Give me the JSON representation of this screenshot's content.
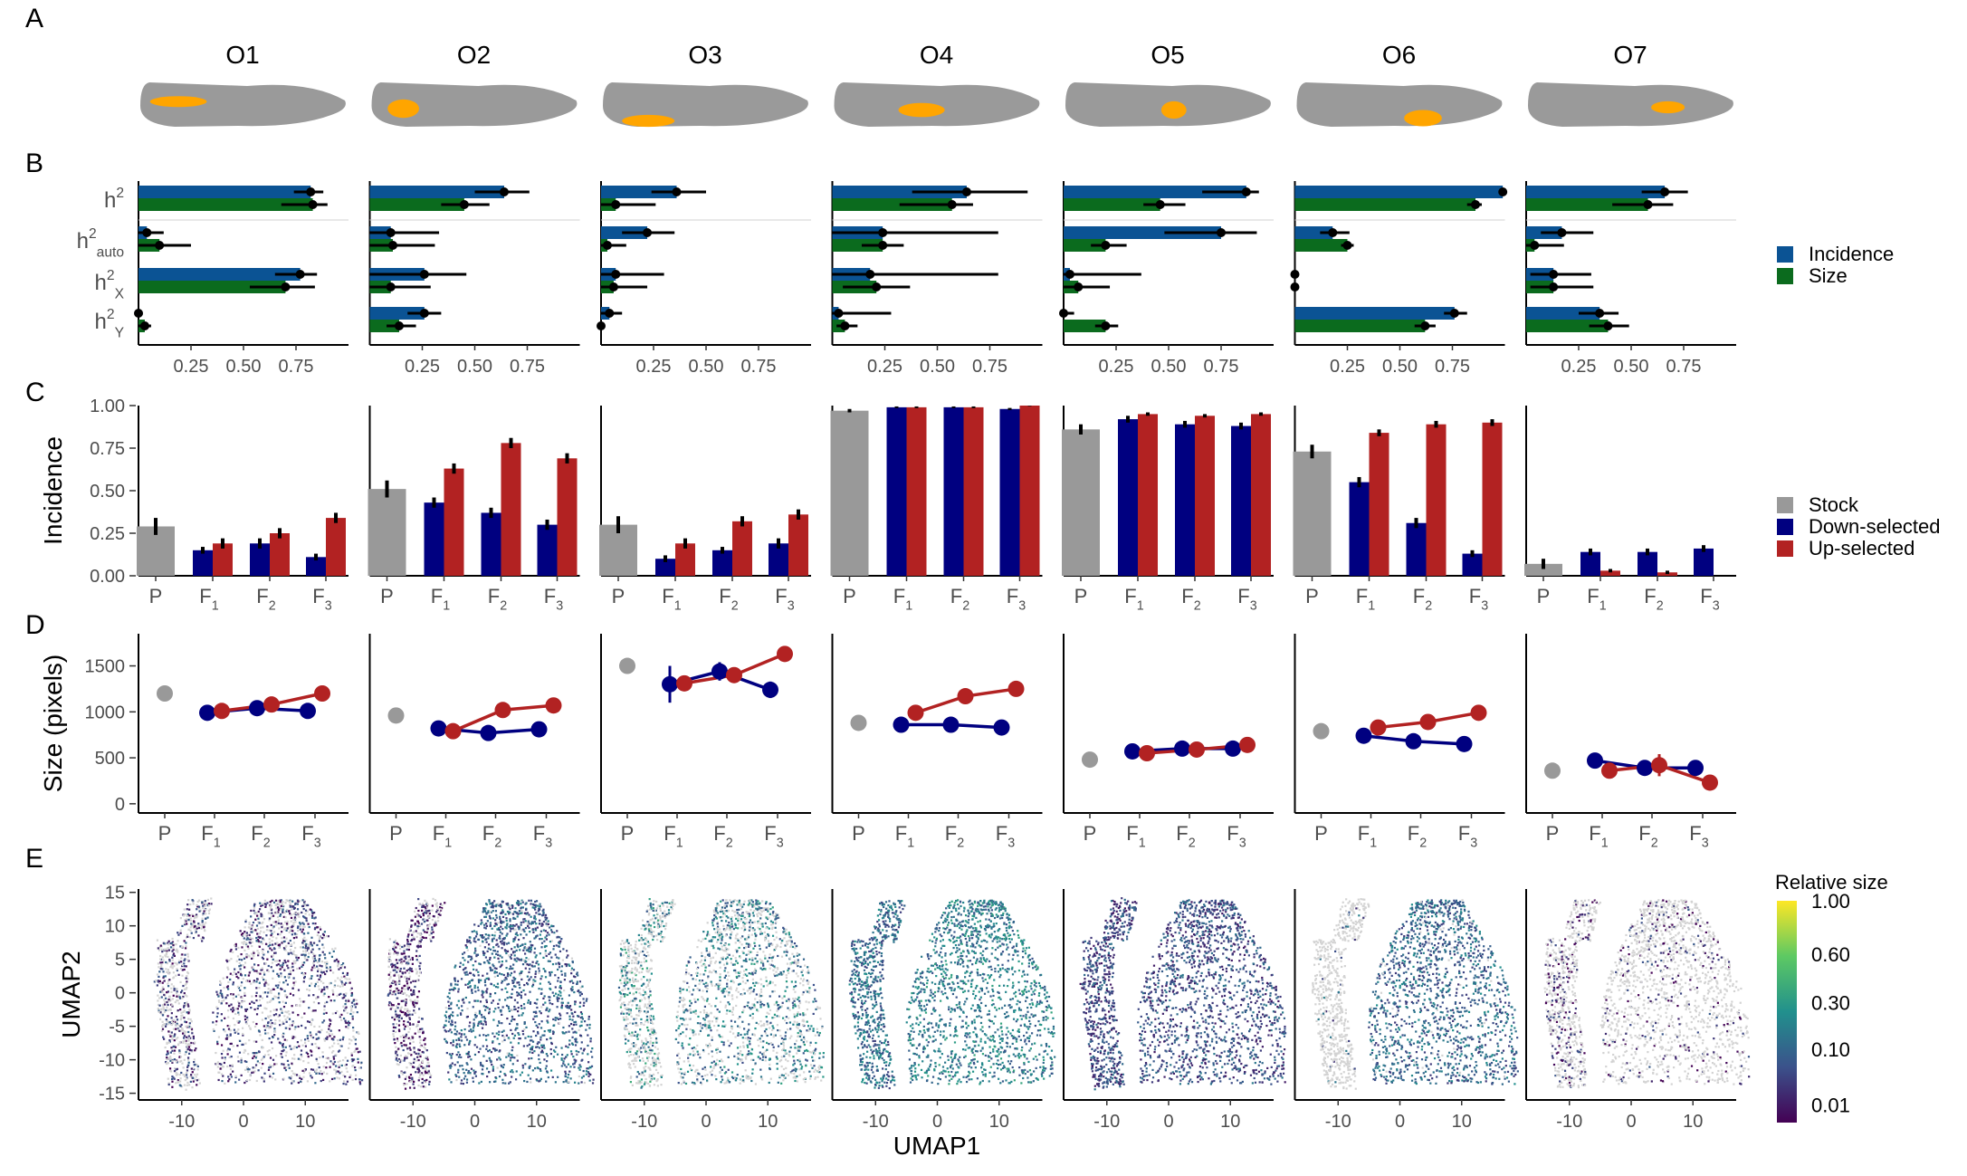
{
  "panel_labels": [
    "A",
    "B",
    "C",
    "D",
    "E"
  ],
  "colors": {
    "incidence": "#0b5394",
    "size": "#0b6b1e",
    "stock": "#999999",
    "down": "#000080",
    "up": "#b22222",
    "organ": "#ffa500",
    "body": "#9a9a9a"
  },
  "chart_data": [
    {
      "panel": "A",
      "type": "table",
      "organs": [
        "O1",
        "O2",
        "O3",
        "O4",
        "O5",
        "O6",
        "O7"
      ]
    },
    {
      "panel": "B",
      "type": "bar",
      "orientation": "horizontal",
      "categories": [
        "h2",
        "h2_auto",
        "h2_X",
        "h2_Y"
      ],
      "category_labels": [
        {
          "base": "h",
          "sup": "2",
          "sub": ""
        },
        {
          "base": "h",
          "sup": "2",
          "sub": "auto"
        },
        {
          "base": "h",
          "sup": "2",
          "sub": "X"
        },
        {
          "base": "h",
          "sup": "2",
          "sub": "Y"
        }
      ],
      "xticks": [
        "0.25",
        "0.50",
        "0.75"
      ],
      "xlim": [
        0,
        1
      ],
      "legend": [
        "Incidence",
        "Size"
      ],
      "legend_position": "right",
      "facets": [
        {
          "organ": "O1",
          "incidence": [
            {
              "v": 0.82,
              "lo": 0.74,
              "hi": 0.88
            },
            {
              "v": 0.04,
              "lo": 0.0,
              "hi": 0.12
            },
            {
              "v": 0.77,
              "lo": 0.65,
              "hi": 0.85
            },
            {
              "v": 0.0,
              "lo": 0.0,
              "hi": 0.02
            }
          ],
          "size": [
            {
              "v": 0.83,
              "lo": 0.68,
              "hi": 0.9
            },
            {
              "v": 0.1,
              "lo": 0.0,
              "hi": 0.25
            },
            {
              "v": 0.7,
              "lo": 0.53,
              "hi": 0.84
            },
            {
              "v": 0.03,
              "lo": 0.0,
              "hi": 0.06
            }
          ]
        },
        {
          "organ": "O2",
          "incidence": [
            {
              "v": 0.64,
              "lo": 0.5,
              "hi": 0.76
            },
            {
              "v": 0.1,
              "lo": 0.0,
              "hi": 0.33
            },
            {
              "v": 0.26,
              "lo": 0.0,
              "hi": 0.46
            },
            {
              "v": 0.26,
              "lo": 0.18,
              "hi": 0.34
            }
          ],
          "size": [
            {
              "v": 0.45,
              "lo": 0.34,
              "hi": 0.57
            },
            {
              "v": 0.11,
              "lo": 0.0,
              "hi": 0.31
            },
            {
              "v": 0.1,
              "lo": 0.0,
              "hi": 0.29
            },
            {
              "v": 0.14,
              "lo": 0.08,
              "hi": 0.22
            }
          ]
        },
        {
          "organ": "O3",
          "incidence": [
            {
              "v": 0.36,
              "lo": 0.24,
              "hi": 0.5
            },
            {
              "v": 0.22,
              "lo": 0.1,
              "hi": 0.35
            },
            {
              "v": 0.07,
              "lo": 0.0,
              "hi": 0.3
            },
            {
              "v": 0.04,
              "lo": 0.0,
              "hi": 0.1
            }
          ],
          "size": [
            {
              "v": 0.07,
              "lo": 0.0,
              "hi": 0.26
            },
            {
              "v": 0.03,
              "lo": 0.0,
              "hi": 0.12
            },
            {
              "v": 0.06,
              "lo": 0.0,
              "hi": 0.22
            },
            {
              "v": 0.0,
              "lo": 0.0,
              "hi": 0.01
            }
          ]
        },
        {
          "organ": "O4",
          "incidence": [
            {
              "v": 0.64,
              "lo": 0.38,
              "hi": 0.93
            },
            {
              "v": 0.24,
              "lo": 0.0,
              "hi": 0.79
            },
            {
              "v": 0.18,
              "lo": 0.0,
              "hi": 0.79
            },
            {
              "v": 0.03,
              "lo": 0.0,
              "hi": 0.28
            }
          ],
          "size": [
            {
              "v": 0.57,
              "lo": 0.32,
              "hi": 0.67
            },
            {
              "v": 0.24,
              "lo": 0.14,
              "hi": 0.34
            },
            {
              "v": 0.21,
              "lo": 0.05,
              "hi": 0.37
            },
            {
              "v": 0.06,
              "lo": 0.02,
              "hi": 0.12
            }
          ]
        },
        {
          "organ": "O5",
          "incidence": [
            {
              "v": 0.87,
              "lo": 0.66,
              "hi": 0.93
            },
            {
              "v": 0.75,
              "lo": 0.48,
              "hi": 0.92
            },
            {
              "v": 0.03,
              "lo": 0.0,
              "hi": 0.37
            },
            {
              "v": 0.0,
              "lo": 0.0,
              "hi": 0.05
            }
          ],
          "size": [
            {
              "v": 0.46,
              "lo": 0.38,
              "hi": 0.58
            },
            {
              "v": 0.2,
              "lo": 0.13,
              "hi": 0.3
            },
            {
              "v": 0.07,
              "lo": 0.0,
              "hi": 0.22
            },
            {
              "v": 0.2,
              "lo": 0.15,
              "hi": 0.26
            }
          ]
        },
        {
          "organ": "O6",
          "incidence": [
            {
              "v": 0.99,
              "lo": 0.97,
              "hi": 1.0
            },
            {
              "v": 0.18,
              "lo": 0.12,
              "hi": 0.26
            },
            {
              "v": 0.0,
              "lo": 0.0,
              "hi": 0.01
            },
            {
              "v": 0.76,
              "lo": 0.71,
              "hi": 0.82
            }
          ],
          "size": [
            {
              "v": 0.86,
              "lo": 0.82,
              "hi": 0.89
            },
            {
              "v": 0.25,
              "lo": 0.22,
              "hi": 0.28
            },
            {
              "v": 0.0,
              "lo": 0.0,
              "hi": 0.01
            },
            {
              "v": 0.62,
              "lo": 0.57,
              "hi": 0.67
            }
          ]
        },
        {
          "organ": "O7",
          "incidence": [
            {
              "v": 0.66,
              "lo": 0.55,
              "hi": 0.77
            },
            {
              "v": 0.17,
              "lo": 0.07,
              "hi": 0.32
            },
            {
              "v": 0.13,
              "lo": 0.02,
              "hi": 0.31
            },
            {
              "v": 0.35,
              "lo": 0.25,
              "hi": 0.44
            }
          ],
          "size": [
            {
              "v": 0.58,
              "lo": 0.41,
              "hi": 0.7
            },
            {
              "v": 0.04,
              "lo": 0.0,
              "hi": 0.18
            },
            {
              "v": 0.13,
              "lo": 0.02,
              "hi": 0.32
            },
            {
              "v": 0.39,
              "lo": 0.3,
              "hi": 0.49
            }
          ]
        }
      ]
    },
    {
      "panel": "C",
      "type": "bar",
      "ylabel": "Incidence",
      "ylim": [
        0,
        1
      ],
      "yticks": [
        "0.00",
        "0.25",
        "0.50",
        "0.75",
        "1.00"
      ],
      "x_labels": [
        {
          "base": "P",
          "sub": ""
        },
        {
          "base": "F",
          "sub": "1"
        },
        {
          "base": "F",
          "sub": "2"
        },
        {
          "base": "F",
          "sub": "3"
        }
      ],
      "legend": [
        "Stock",
        "Down-selected",
        "Up-selected"
      ],
      "legend_position": "right",
      "facets": [
        {
          "organ": "O1",
          "stock": {
            "v": 0.29,
            "e": 0.05
          },
          "down": [
            {
              "v": 0.15,
              "e": 0.02
            },
            {
              "v": 0.19,
              "e": 0.03
            },
            {
              "v": 0.11,
              "e": 0.02
            }
          ],
          "up": [
            {
              "v": 0.19,
              "e": 0.03
            },
            {
              "v": 0.25,
              "e": 0.03
            },
            {
              "v": 0.34,
              "e": 0.03
            }
          ]
        },
        {
          "organ": "O2",
          "stock": {
            "v": 0.51,
            "e": 0.05
          },
          "down": [
            {
              "v": 0.43,
              "e": 0.03
            },
            {
              "v": 0.37,
              "e": 0.03
            },
            {
              "v": 0.3,
              "e": 0.03
            }
          ],
          "up": [
            {
              "v": 0.63,
              "e": 0.03
            },
            {
              "v": 0.78,
              "e": 0.03
            },
            {
              "v": 0.69,
              "e": 0.03
            }
          ]
        },
        {
          "organ": "O3",
          "stock": {
            "v": 0.3,
            "e": 0.05
          },
          "down": [
            {
              "v": 0.1,
              "e": 0.02
            },
            {
              "v": 0.15,
              "e": 0.02
            },
            {
              "v": 0.19,
              "e": 0.03
            }
          ],
          "up": [
            {
              "v": 0.19,
              "e": 0.03
            },
            {
              "v": 0.32,
              "e": 0.03
            },
            {
              "v": 0.36,
              "e": 0.03
            }
          ]
        },
        {
          "organ": "O4",
          "stock": {
            "v": 0.97,
            "e": 0.01
          },
          "down": [
            {
              "v": 0.99,
              "e": 0.005
            },
            {
              "v": 0.99,
              "e": 0.005
            },
            {
              "v": 0.98,
              "e": 0.006
            }
          ],
          "up": [
            {
              "v": 0.99,
              "e": 0.005
            },
            {
              "v": 0.99,
              "e": 0.005
            },
            {
              "v": 1.0,
              "e": 0.003
            }
          ]
        },
        {
          "organ": "O5",
          "stock": {
            "v": 0.86,
            "e": 0.03
          },
          "down": [
            {
              "v": 0.92,
              "e": 0.02
            },
            {
              "v": 0.89,
              "e": 0.02
            },
            {
              "v": 0.88,
              "e": 0.02
            }
          ],
          "up": [
            {
              "v": 0.95,
              "e": 0.01
            },
            {
              "v": 0.94,
              "e": 0.01
            },
            {
              "v": 0.95,
              "e": 0.01
            }
          ]
        },
        {
          "organ": "O6",
          "stock": {
            "v": 0.73,
            "e": 0.04
          },
          "down": [
            {
              "v": 0.55,
              "e": 0.03
            },
            {
              "v": 0.31,
              "e": 0.03
            },
            {
              "v": 0.13,
              "e": 0.02
            }
          ],
          "up": [
            {
              "v": 0.84,
              "e": 0.02
            },
            {
              "v": 0.89,
              "e": 0.02
            },
            {
              "v": 0.9,
              "e": 0.02
            }
          ]
        },
        {
          "organ": "O7",
          "stock": {
            "v": 0.07,
            "e": 0.03
          },
          "down": [
            {
              "v": 0.14,
              "e": 0.02
            },
            {
              "v": 0.14,
              "e": 0.02
            },
            {
              "v": 0.16,
              "e": 0.02
            }
          ],
          "up": [
            {
              "v": 0.03,
              "e": 0.01
            },
            {
              "v": 0.02,
              "e": 0.01
            },
            {
              "v": 0.0,
              "e": 0.003
            }
          ]
        }
      ]
    },
    {
      "panel": "D",
      "type": "line",
      "ylabel": "Size (pixels)",
      "ylim": [
        -100,
        1850
      ],
      "yticks": [
        "0",
        "500",
        "1000",
        "1500"
      ],
      "x_labels": [
        {
          "base": "P",
          "sub": ""
        },
        {
          "base": "F",
          "sub": "1"
        },
        {
          "base": "F",
          "sub": "2"
        },
        {
          "base": "F",
          "sub": "3"
        }
      ],
      "facets": [
        {
          "organ": "O1",
          "stock": {
            "v": 1200,
            "e": 80
          },
          "down": [
            {
              "v": 990,
              "e": 70
            },
            {
              "v": 1040,
              "e": 40
            },
            {
              "v": 1010,
              "e": 40
            }
          ],
          "up": [
            {
              "v": 1010,
              "e": 40
            },
            {
              "v": 1080,
              "e": 40
            },
            {
              "v": 1200,
              "e": 40
            }
          ]
        },
        {
          "organ": "O2",
          "stock": {
            "v": 960,
            "e": 30
          },
          "down": [
            {
              "v": 820,
              "e": 30
            },
            {
              "v": 770,
              "e": 30
            },
            {
              "v": 810,
              "e": 30
            }
          ],
          "up": [
            {
              "v": 790,
              "e": 30
            },
            {
              "v": 1020,
              "e": 30
            },
            {
              "v": 1070,
              "e": 30
            }
          ]
        },
        {
          "organ": "O3",
          "stock": {
            "v": 1500,
            "e": 80
          },
          "down": [
            {
              "v": 1300,
              "e": 200
            },
            {
              "v": 1440,
              "e": 100
            },
            {
              "v": 1240,
              "e": 90
            }
          ],
          "up": [
            {
              "v": 1310,
              "e": 70
            },
            {
              "v": 1400,
              "e": 50
            },
            {
              "v": 1630,
              "e": 80
            }
          ]
        },
        {
          "organ": "O4",
          "stock": {
            "v": 880,
            "e": 30
          },
          "down": [
            {
              "v": 860,
              "e": 30
            },
            {
              "v": 860,
              "e": 30
            },
            {
              "v": 830,
              "e": 30
            }
          ],
          "up": [
            {
              "v": 990,
              "e": 30
            },
            {
              "v": 1170,
              "e": 30
            },
            {
              "v": 1250,
              "e": 30
            }
          ]
        },
        {
          "organ": "O5",
          "stock": {
            "v": 480,
            "e": 30
          },
          "down": [
            {
              "v": 570,
              "e": 30
            },
            {
              "v": 600,
              "e": 30
            },
            {
              "v": 600,
              "e": 30
            }
          ],
          "up": [
            {
              "v": 550,
              "e": 30
            },
            {
              "v": 590,
              "e": 30
            },
            {
              "v": 640,
              "e": 30
            }
          ]
        },
        {
          "organ": "O6",
          "stock": {
            "v": 790,
            "e": 30
          },
          "down": [
            {
              "v": 740,
              "e": 30
            },
            {
              "v": 680,
              "e": 30
            },
            {
              "v": 650,
              "e": 30
            }
          ],
          "up": [
            {
              "v": 830,
              "e": 30
            },
            {
              "v": 890,
              "e": 30
            },
            {
              "v": 990,
              "e": 30
            }
          ]
        },
        {
          "organ": "O7",
          "stock": {
            "v": 360,
            "e": 30
          },
          "down": [
            {
              "v": 470,
              "e": 30
            },
            {
              "v": 390,
              "e": 30
            },
            {
              "v": 390,
              "e": 30
            }
          ],
          "up": [
            {
              "v": 360,
              "e": 30
            },
            {
              "v": 420,
              "e": 120
            },
            {
              "v": 230,
              "e": 30
            }
          ]
        }
      ]
    },
    {
      "panel": "E",
      "type": "scatter",
      "xlabel": "UMAP1",
      "ylabel": "UMAP2",
      "xlim": [
        -17,
        17
      ],
      "ylim": [
        -16,
        15.5
      ],
      "xticks": [
        -10,
        0,
        10
      ],
      "yticks": [
        15,
        10,
        5,
        0,
        -5,
        -10,
        -15
      ],
      "colorbar_title": "Relative size",
      "colorbar_ticks": [
        "1.00",
        "0.60",
        "0.30",
        "0.10",
        "0.01"
      ],
      "colorbar_values": [
        1.0,
        0.6,
        0.3,
        0.1,
        0.01
      ],
      "colorscale": "viridis",
      "facets": [
        {
          "organ": "O1",
          "left_level": 0.15,
          "right_level": 0.18,
          "gray_left": 0.55,
          "gray_right": 0.4
        },
        {
          "organ": "O2",
          "left_level": 0.1,
          "right_level": 0.3,
          "gray_left": 0.35,
          "gray_right": 0.03
        },
        {
          "organ": "O3",
          "left_level": 0.45,
          "right_level": 0.4,
          "gray_left": 0.6,
          "gray_right": 0.45
        },
        {
          "organ": "O4",
          "left_level": 0.35,
          "right_level": 0.42,
          "gray_left": 0.0,
          "gray_right": 0.0
        },
        {
          "organ": "O5",
          "left_level": 0.22,
          "right_level": 0.24,
          "gray_left": 0.0,
          "gray_right": 0.0
        },
        {
          "organ": "O6",
          "left_level": 0.3,
          "right_level": 0.33,
          "gray_left": 0.95,
          "gray_right": 0.03
        },
        {
          "organ": "O7",
          "left_level": 0.1,
          "right_level": 0.12,
          "gray_left": 0.7,
          "gray_right": 0.85
        }
      ]
    }
  ]
}
